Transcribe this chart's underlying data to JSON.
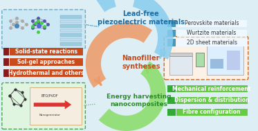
{
  "bg_color": "#ddeef5",
  "title": "Lead-free\npiezoelectric materials",
  "title2": "Nanofiller\nsyntheses",
  "title3": "Energy harvesting\nnanocomposites",
  "title_color": "#1a6fa8",
  "title2_color": "#c94a1a",
  "title3_color": "#2a8a2a",
  "red_labels": [
    "Solid-state reactions",
    "Sol-gel approaches",
    "Hydrothermal and others"
  ],
  "red_box_color": "#c94a1a",
  "red_dark_color": "#8B1A1A",
  "blue_labels": [
    "Perovskite materials",
    "Wurtzite materials",
    "2D sheet materials"
  ],
  "blue_sq_color": "#4499bb",
  "blue_text_color": "#333333",
  "green_labels": [
    "Mechanical reinforcement",
    "Dispersion & distribution",
    "Fibre configuration"
  ],
  "green_sq_color": "#33aa33",
  "green_box_color": "#66cc44",
  "green_text_color": "#ffffff",
  "arrow_blue_color": "#88ccee",
  "arrow_orange_color": "#ee9966",
  "arrow_green_color": "#88dd66",
  "top_left_border": "#66aacc",
  "bottom_left_border": "#44aa44",
  "right_mid_border": "#cc6622"
}
